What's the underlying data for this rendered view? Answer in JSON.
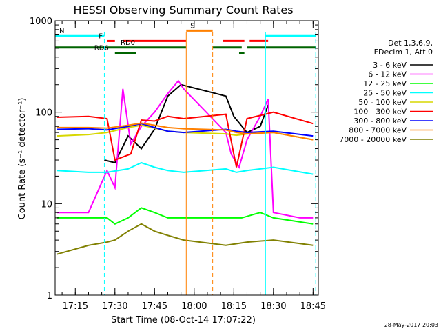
{
  "chart_data": {
    "type": "line",
    "title": "HESSI Observing Summary Count Rates",
    "xlabel": "Start Time (08-Oct-14 17:07:22)",
    "ylabel": "Count Rate (s⁻¹ detector⁻¹)",
    "yscale": "log",
    "ylim": [
      1,
      1000
    ],
    "xlim": [
      "17:07:22",
      "18:47:00"
    ],
    "x_ticks": [
      "17:15",
      "17:30",
      "17:45",
      "18:00",
      "18:15",
      "18:30",
      "18:45"
    ],
    "y_ticks": [
      "1",
      "10",
      "100",
      "1000"
    ],
    "legend_header": [
      "Det 1,3,6,9,",
      "FDecim 1, Att 0"
    ],
    "footer_date": "28-May-2017 20:03",
    "series": [
      {
        "name": "3 - 6 keV",
        "color": "#000000",
        "x": [
          "17:26",
          "17:30",
          "17:35",
          "17:40",
          "17:45",
          "17:50",
          "17:55",
          "18:12",
          "18:15",
          "18:20",
          "18:25",
          "18:28"
        ],
        "y": [
          30,
          28,
          55,
          40,
          65,
          150,
          200,
          150,
          90,
          60,
          70,
          120
        ]
      },
      {
        "name": "6 - 12 keV",
        "color": "#ff00ff",
        "x": [
          "17:08",
          "17:20",
          "17:27",
          "17:30",
          "17:33",
          "17:36",
          "17:40",
          "17:45",
          "17:50",
          "17:54",
          "17:56",
          "18:12",
          "18:14",
          "18:17",
          "18:20",
          "18:25",
          "18:28",
          "18:30",
          "18:40",
          "18:45"
        ],
        "y": [
          8,
          8,
          23,
          15,
          180,
          45,
          70,
          100,
          160,
          220,
          180,
          60,
          35,
          25,
          50,
          90,
          140,
          8,
          7,
          7
        ]
      },
      {
        "name": "12 - 25 keV",
        "color": "#00ff00",
        "x": [
          "17:08",
          "17:20",
          "17:27",
          "17:30",
          "17:35",
          "17:40",
          "17:45",
          "17:50",
          "17:56",
          "18:12",
          "18:18",
          "18:25",
          "18:30",
          "18:45"
        ],
        "y": [
          7,
          7,
          7,
          6,
          7,
          9,
          8,
          7,
          7,
          7,
          7,
          8,
          7,
          6
        ]
      },
      {
        "name": "25 - 50 keV",
        "color": "#00ffff",
        "x": [
          "17:08",
          "17:20",
          "17:27",
          "17:35",
          "17:40",
          "17:45",
          "17:50",
          "17:56",
          "18:12",
          "18:16",
          "18:20",
          "18:30",
          "18:45"
        ],
        "y": [
          23,
          22,
          22,
          24,
          28,
          25,
          23,
          22,
          24,
          22,
          23,
          25,
          21
        ]
      },
      {
        "name": "50 - 100 keV",
        "color": "#d7d700",
        "x": [
          "17:08",
          "17:20",
          "17:27",
          "17:35",
          "17:40",
          "17:45",
          "17:50",
          "17:56",
          "18:12",
          "18:16",
          "18:20",
          "18:30",
          "18:45"
        ],
        "y": [
          55,
          57,
          60,
          68,
          72,
          67,
          62,
          60,
          58,
          56,
          58,
          60,
          50
        ]
      },
      {
        "name": "100 - 300 keV",
        "color": "#ff0000",
        "x": [
          "17:08",
          "17:20",
          "17:27",
          "17:30",
          "17:36",
          "17:40",
          "17:45",
          "17:50",
          "17:56",
          "18:12",
          "18:16",
          "18:20",
          "18:30",
          "18:45"
        ],
        "y": [
          88,
          90,
          85,
          30,
          35,
          82,
          80,
          90,
          85,
          95,
          25,
          85,
          100,
          75
        ]
      },
      {
        "name": "300 - 800 keV",
        "color": "#0000ff",
        "x": [
          "17:08",
          "17:20",
          "17:27",
          "17:35",
          "17:40",
          "17:45",
          "17:50",
          "17:56",
          "18:12",
          "18:16",
          "18:20",
          "18:30",
          "18:45"
        ],
        "y": [
          65,
          66,
          64,
          70,
          75,
          68,
          62,
          60,
          65,
          62,
          60,
          62,
          55
        ]
      },
      {
        "name": "800 - 7000 keV",
        "color": "#ff8000",
        "x": [
          "17:08",
          "17:20",
          "17:27",
          "17:35",
          "17:40",
          "17:45",
          "17:50",
          "17:56",
          "18:12",
          "18:16",
          "18:20",
          "18:30",
          "18:45"
        ],
        "y": [
          68,
          68,
          67,
          72,
          76,
          72,
          68,
          66,
          64,
          60,
          58,
          60,
          50
        ]
      },
      {
        "name": "7000 - 20000 keV",
        "color": "#808000",
        "x": [
          "17:08",
          "17:20",
          "17:27",
          "17:30",
          "17:35",
          "17:40",
          "17:45",
          "17:50",
          "17:56",
          "18:12",
          "18:20",
          "18:30",
          "18:45"
        ],
        "y": [
          2.8,
          3.5,
          3.8,
          4.0,
          5.0,
          6.0,
          5.0,
          4.5,
          4.0,
          3.5,
          3.8,
          4.0,
          3.5
        ]
      }
    ],
    "flag_rows": [
      {
        "label": "N",
        "color": "#00ffff",
        "level": 680,
        "segments": [
          [
            "17:07:22",
            "17:26"
          ],
          [
            "18:27",
            "18:46"
          ]
        ]
      },
      {
        "label": "S",
        "color": "#ff8000",
        "level": 780,
        "segments": [
          [
            "17:57",
            "18:07"
          ]
        ]
      },
      {
        "label": "F",
        "color": "#ff0000",
        "level": 600,
        "segments": [
          [
            "17:27",
            "17:30"
          ],
          [
            "17:33",
            "17:57"
          ],
          [
            "18:11",
            "18:19"
          ],
          [
            "18:21",
            "18:28"
          ]
        ]
      },
      {
        "label": "RD0",
        "color": "#006400",
        "level": 510,
        "segments": [
          [
            "17:07:22",
            "17:57"
          ],
          [
            "18:07",
            "18:18"
          ],
          [
            "18:20",
            "18:46"
          ]
        ]
      },
      {
        "label": "RD6",
        "color": "#006400",
        "level": 445,
        "segments": [
          [
            "17:30",
            "17:38"
          ],
          [
            "18:17",
            "18:19"
          ]
        ]
      }
    ],
    "vertical_lines": [
      {
        "time": "17:26",
        "color": "#00ffff",
        "style": "dashed"
      },
      {
        "time": "17:57",
        "color": "#ff8000",
        "style": "solid"
      },
      {
        "time": "18:07",
        "color": "#ff8000",
        "style": "dashed"
      },
      {
        "time": "18:27",
        "color": "#00ffff",
        "style": "solid"
      },
      {
        "time": "18:46",
        "color": "#00ffff",
        "style": "dashed"
      }
    ]
  }
}
